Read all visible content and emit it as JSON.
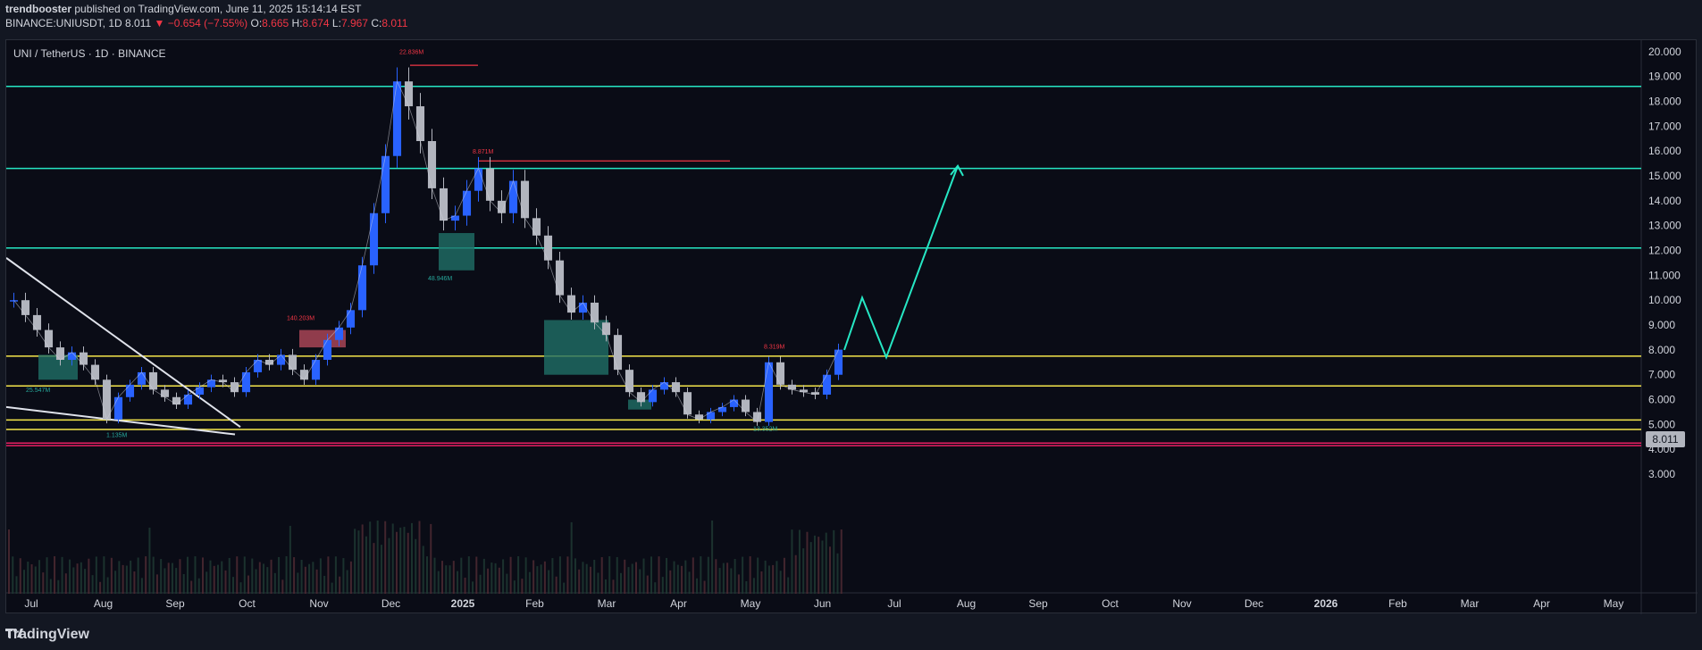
{
  "header": {
    "publisher": "trendbooster",
    "published_text": "published on TradingView.com, June 11, 2025 15:14:14 EST",
    "symbol": "BINANCE:UNIUSDT, 1D",
    "last": "8.011",
    "change_arrow": "▼",
    "change": "−0.654 (−7.55%)",
    "o_label": "O:",
    "o_value": "8.665",
    "h_label": "H:",
    "h_value": "8.674",
    "l_label": "L:",
    "l_value": "7.967",
    "c_label": "C:",
    "c_value": "8.011"
  },
  "legend": {
    "title": "UNI / TetherUS · 1D · BINANCE"
  },
  "price_label": "8.011",
  "footer": {
    "brand": "TradingView",
    "logo_icon": "tradingview-logo-icon"
  },
  "colors": {
    "bg": "#0a0c16",
    "up": "#2962ff",
    "down": "#b2b5be",
    "cyan": "#26e7c4",
    "yellow": "#f5e64b",
    "pink": "#e91e63",
    "red": "#f23645"
  },
  "chart_data": {
    "type": "line",
    "y_ticks": [
      "20.000",
      "19.000",
      "18.000",
      "17.000",
      "16.000",
      "15.000",
      "14.000",
      "13.000",
      "12.000",
      "11.000",
      "10.000",
      "9.000",
      "8.000",
      "7.000",
      "6.000",
      "5.000",
      "4.000",
      "3.000"
    ],
    "x_ticks": [
      "Jul",
      "Aug",
      "Sep",
      "Oct",
      "Nov",
      "Dec",
      "2025",
      "Feb",
      "Mar",
      "Apr",
      "May",
      "Jun",
      "Jul",
      "Aug",
      "Sep",
      "Oct",
      "Nov",
      "Dec",
      "2026",
      "Feb",
      "Mar",
      "Apr",
      "May"
    ],
    "ylim": [
      2.5,
      20.1
    ],
    "price_path": [
      10.0,
      9.4,
      8.8,
      8.1,
      7.6,
      7.9,
      7.4,
      6.8,
      5.2,
      6.1,
      6.6,
      7.1,
      6.4,
      6.1,
      5.8,
      6.2,
      6.5,
      6.8,
      6.7,
      6.3,
      7.1,
      7.6,
      7.4,
      7.8,
      7.2,
      6.8,
      7.6,
      8.4,
      8.9,
      9.6,
      11.4,
      13.5,
      15.8,
      18.8,
      17.8,
      16.4,
      14.5,
      13.2,
      13.4,
      14.4,
      15.3,
      14.0,
      13.5,
      14.8,
      13.3,
      12.6,
      11.6,
      10.2,
      9.5,
      9.9,
      9.1,
      8.6,
      7.2,
      6.3,
      5.9,
      6.4,
      6.7,
      6.3,
      5.4,
      5.2,
      5.5,
      5.7,
      6.0,
      5.5,
      5.1,
      7.5,
      6.6,
      6.4,
      6.3,
      6.2,
      7.0,
      8.01
    ],
    "horizontal_levels": [
      18.6,
      15.3,
      12.1,
      7.75,
      6.55,
      5.18,
      4.8,
      4.25,
      4.15
    ],
    "projection": [
      8.0,
      10.1,
      7.7,
      15.4
    ],
    "annotations": [
      "22.836M",
      "8.871M",
      "140.203M",
      "8.319M",
      "48.946M",
      "13.352M",
      "1.135M",
      "25.547M"
    ]
  }
}
